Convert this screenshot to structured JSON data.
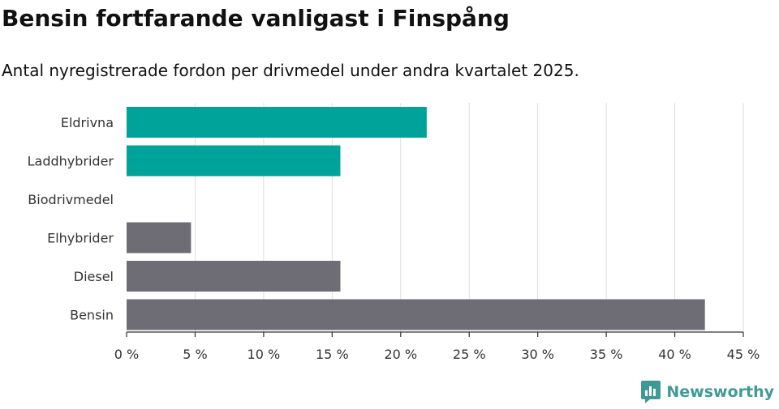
{
  "title": "Bensin fortfarande vanligast i Finspång",
  "subtitle": "Antal nyregistrerade fordon per drivmedel under andra kvartalet 2025.",
  "logo": {
    "text": "Newsworthy",
    "icon": "newsworthy-logo-icon",
    "color": "#3f9a96"
  },
  "chart_data": {
    "type": "bar",
    "orientation": "horizontal",
    "categories": [
      "Eldrivna",
      "Laddhybrider",
      "Biodrivmedel",
      "Elhybrider",
      "Diesel",
      "Bensin"
    ],
    "values": [
      21.9,
      15.6,
      0,
      4.7,
      15.6,
      42.2
    ],
    "colors": [
      "#00a39a",
      "#00a39a",
      "#00a39a",
      "#6e6d75",
      "#6e6d75",
      "#6e6d75"
    ],
    "xlim": [
      0,
      45
    ],
    "xticks": [
      0,
      5,
      10,
      15,
      20,
      25,
      30,
      35,
      40,
      45
    ],
    "xtick_labels": [
      "0 %",
      "5 %",
      "10 %",
      "15 %",
      "20 %",
      "25 %",
      "30 %",
      "35 %",
      "40 %",
      "45 %"
    ],
    "grid": "vertical",
    "xlabel": "",
    "ylabel": ""
  }
}
